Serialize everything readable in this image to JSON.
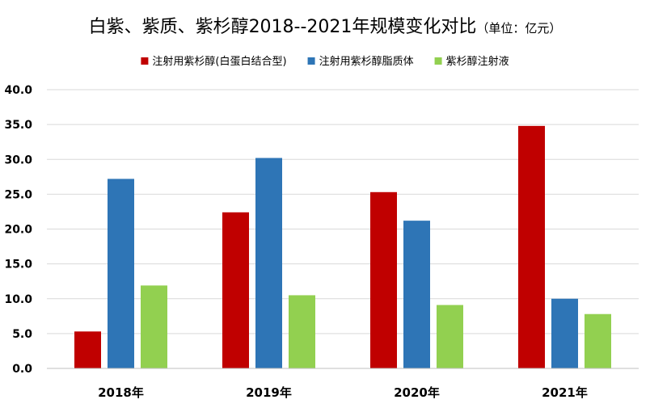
{
  "chart_data": {
    "type": "bar",
    "title": "白紫、紫质、紫杉醇2018--2021年规模变化对比",
    "title_unit": "（单位：亿元）",
    "xlabel": "",
    "ylabel": "",
    "ylim": [
      0,
      40
    ],
    "ytick_step": 5,
    "ytick_labels": [
      "0.0",
      "5.0",
      "10.0",
      "15.0",
      "20.0",
      "25.0",
      "30.0",
      "35.0",
      "40.0"
    ],
    "grid": true,
    "legend_position": "top-center",
    "categories": [
      "2018年",
      "2019年",
      "2020年",
      "2021年"
    ],
    "series": [
      {
        "name": "注射用紫杉醇(白蛋白结合型)",
        "color": "#c00000",
        "values": [
          5.3,
          22.4,
          25.3,
          34.8
        ]
      },
      {
        "name": "注射用紫杉醇脂质体",
        "color": "#2e75b6",
        "values": [
          27.2,
          30.2,
          21.2,
          10.0
        ]
      },
      {
        "name": "紫杉醇注射液",
        "color": "#92d050",
        "values": [
          11.9,
          10.5,
          9.1,
          7.8
        ]
      }
    ]
  }
}
